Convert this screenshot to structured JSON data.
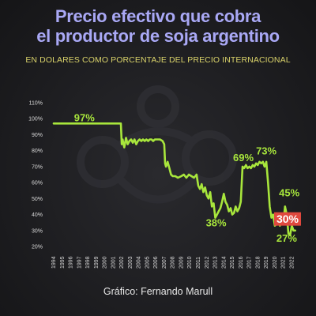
{
  "title_line1": "Precio efectivo que cobra",
  "title_line2": "el productor de soja argentino",
  "subtitle": "EN DOLARES COMO PORCENTAJE DEL PRECIO INTERNACIONAL",
  "credit": "Gráfico: Fernando Marull",
  "colors": {
    "line": "#a8e63c",
    "title": "#a9a8f5",
    "subtitle": "#d9d26a",
    "highlight": "#e0483e"
  },
  "chart_data": {
    "type": "line",
    "title": "Precio efectivo que cobra el productor de soja argentino",
    "subtitle": "EN DOLARES COMO PORCENTAJE DEL PRECIO INTERNACIONAL",
    "xlabel": "",
    "ylabel": "",
    "ylim": [
      20,
      110
    ],
    "y_ticks": [
      "110%",
      "100%",
      "90%",
      "80%",
      "70%",
      "60%",
      "50%",
      "40%",
      "30%",
      "20%"
    ],
    "x_ticks": [
      "1994",
      "1995",
      "1996",
      "1997",
      "1998",
      "1999",
      "2000",
      "2001",
      "2002",
      "2003",
      "2004",
      "2005",
      "2006",
      "2007",
      "2008",
      "2009",
      "2010",
      "2011",
      "2012",
      "2013",
      "2014",
      "2015",
      "2016",
      "2017",
      "2018",
      "2019",
      "2020",
      "2021",
      "2022"
    ],
    "xlim": [
      1994,
      2022.8
    ],
    "grid": false,
    "series": [
      {
        "x": [
          1994,
          2001.9,
          2002.0,
          2002.1,
          2002.3,
          2002.5,
          2002.7,
          2002.9,
          2003.1,
          2003.3,
          2003.5,
          2003.7,
          2003.9,
          2004.1,
          2004.3,
          2004.5,
          2004.7,
          2004.9,
          2005.1,
          2005.3,
          2005.5,
          2005.7,
          2005.9,
          2006.2,
          2006.5,
          2006.8,
          2007.0,
          2007.1,
          2007.2,
          2007.4,
          2007.6,
          2007.8,
          2008.0,
          2008.3,
          2008.6,
          2009.0,
          2009.3,
          2009.6,
          2009.9,
          2010.2,
          2010.5,
          2010.8,
          2011.0,
          2011.2,
          2011.4,
          2011.6,
          2011.8,
          2012.0,
          2012.2,
          2012.4,
          2012.6,
          2012.8,
          2013.0,
          2013.2,
          2013.4,
          2013.6,
          2013.8,
          2014.0,
          2014.2,
          2014.4,
          2014.6,
          2014.8,
          2015.0,
          2015.2,
          2015.4,
          2015.6,
          2015.8,
          2016.0,
          2016.2,
          2016.4,
          2016.6,
          2016.8,
          2017.0,
          2017.2,
          2017.4,
          2017.6,
          2017.8,
          2018.0,
          2018.2,
          2018.4,
          2018.6,
          2018.8,
          2019.0,
          2019.2,
          2019.4,
          2019.6,
          2019.8,
          2020.0,
          2020.2,
          2020.4,
          2020.6,
          2020.8,
          2021.0,
          2021.2,
          2021.4,
          2021.6,
          2021.8,
          2022.0,
          2022.2,
          2022.4
        ],
        "y": [
          97,
          97,
          84,
          87,
          82,
          88,
          84,
          86,
          87,
          85,
          87,
          84,
          86,
          87,
          86,
          87,
          86,
          87,
          86,
          87,
          87,
          86,
          87,
          87,
          87,
          86,
          84,
          72,
          70,
          73,
          69,
          65,
          64,
          64,
          63,
          64,
          65,
          63,
          65,
          64,
          63,
          65,
          58,
          56,
          59,
          54,
          57,
          52,
          50,
          54,
          45,
          47,
          38,
          40,
          42,
          44,
          48,
          53,
          48,
          46,
          42,
          44,
          40,
          41,
          45,
          42,
          44,
          48,
          70,
          69,
          71,
          69,
          70,
          69,
          71,
          70,
          72,
          71,
          73,
          72,
          73,
          70,
          73,
          60,
          45,
          38,
          40,
          33,
          34,
          37,
          33,
          36,
          34,
          45,
          40,
          28,
          27,
          33,
          30,
          30
        ]
      }
    ],
    "annotations": [
      {
        "text": "97%",
        "x": 1997.6,
        "y": 98.5
      },
      {
        "text": "69%",
        "x": 2016.3,
        "y": 73.5
      },
      {
        "text": "73%",
        "x": 2019.0,
        "y": 77.5
      },
      {
        "text": "38%",
        "x": 2013.1,
        "y": 32.5
      },
      {
        "text": "45%",
        "x": 2021.7,
        "y": 51.5
      },
      {
        "text": "27%",
        "x": 2021.4,
        "y": 23.0
      },
      {
        "text": "30%",
        "x": 2021.5,
        "y": 35.5,
        "highlight": true
      }
    ]
  }
}
